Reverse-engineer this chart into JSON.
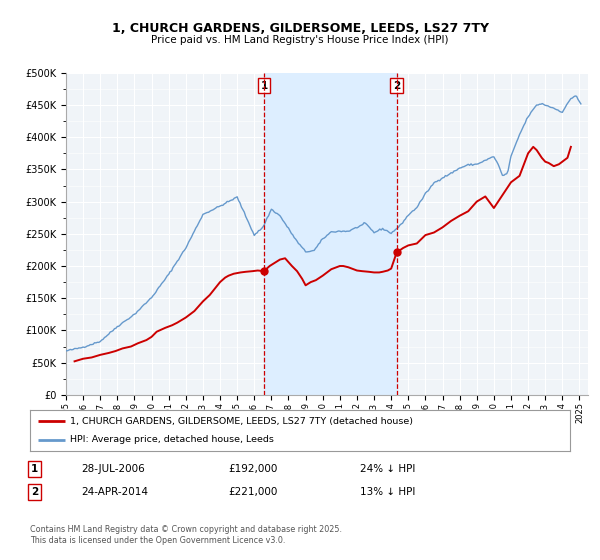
{
  "title": "1, CHURCH GARDENS, GILDERSOME, LEEDS, LS27 7TY",
  "subtitle": "Price paid vs. HM Land Registry's House Price Index (HPI)",
  "legend_label_red": "1, CHURCH GARDENS, GILDERSOME, LEEDS, LS27 7TY (detached house)",
  "legend_label_blue": "HPI: Average price, detached house, Leeds",
  "footnote": "Contains HM Land Registry data © Crown copyright and database right 2025.\nThis data is licensed under the Open Government Licence v3.0.",
  "marker1_date": "28-JUL-2006",
  "marker1_price": 192000,
  "marker1_text": "24% ↓ HPI",
  "marker2_date": "24-APR-2014",
  "marker2_price": 221000,
  "marker2_text": "13% ↓ HPI",
  "marker1_x": 2006.57,
  "marker2_x": 2014.32,
  "shaded_x1": 2006.57,
  "shaded_x2": 2014.32,
  "ylim_min": 0,
  "ylim_max": 500000,
  "xlim_min": 1995,
  "xlim_max": 2025.5,
  "red_color": "#cc0000",
  "blue_color": "#6699cc",
  "shade_color": "#ddeeff",
  "bg_color": "#f0f4f8",
  "grid_color": "#ffffff",
  "price_data_x": [
    1995.5,
    1996.0,
    1996.5,
    1997.0,
    1997.5,
    1997.9,
    1998.3,
    1998.8,
    1999.2,
    1999.7,
    2000.0,
    2000.3,
    2000.8,
    2001.2,
    2001.5,
    2002.0,
    2002.5,
    2003.0,
    2003.4,
    2003.7,
    2004.0,
    2004.3,
    2004.5,
    2004.8,
    2005.0,
    2005.2,
    2005.5,
    2005.9,
    2006.2,
    2006.57,
    2006.9,
    2007.2,
    2007.5,
    2007.8,
    2008.2,
    2008.5,
    2008.8,
    2009.0,
    2009.3,
    2009.6,
    2010.0,
    2010.5,
    2011.0,
    2011.2,
    2011.5,
    2012.0,
    2012.3,
    2012.7,
    2013.0,
    2013.3,
    2013.5,
    2013.8,
    2014.0,
    2014.32,
    2014.7,
    2015.0,
    2015.5,
    2016.0,
    2016.5,
    2017.0,
    2017.5,
    2018.0,
    2018.5,
    2019.0,
    2019.5,
    2020.0,
    2020.5,
    2021.0,
    2021.5,
    2022.0,
    2022.3,
    2022.5,
    2022.8,
    2023.0,
    2023.2,
    2023.5,
    2023.8,
    2024.0,
    2024.3,
    2024.5
  ],
  "price_data_y": [
    52000,
    56000,
    58000,
    62000,
    65000,
    68000,
    72000,
    75000,
    80000,
    85000,
    90000,
    98000,
    104000,
    108000,
    112000,
    120000,
    130000,
    145000,
    155000,
    165000,
    175000,
    182000,
    185000,
    188000,
    189000,
    190000,
    191000,
    192000,
    193000,
    192000,
    200000,
    205000,
    210000,
    212000,
    200000,
    192000,
    180000,
    170000,
    175000,
    178000,
    185000,
    195000,
    200000,
    200000,
    198000,
    193000,
    192000,
    191000,
    190000,
    190000,
    191000,
    193000,
    196000,
    221000,
    228000,
    232000,
    235000,
    248000,
    252000,
    260000,
    270000,
    278000,
    285000,
    300000,
    308000,
    290000,
    310000,
    330000,
    340000,
    375000,
    385000,
    380000,
    368000,
    362000,
    360000,
    355000,
    358000,
    362000,
    368000,
    385000
  ]
}
